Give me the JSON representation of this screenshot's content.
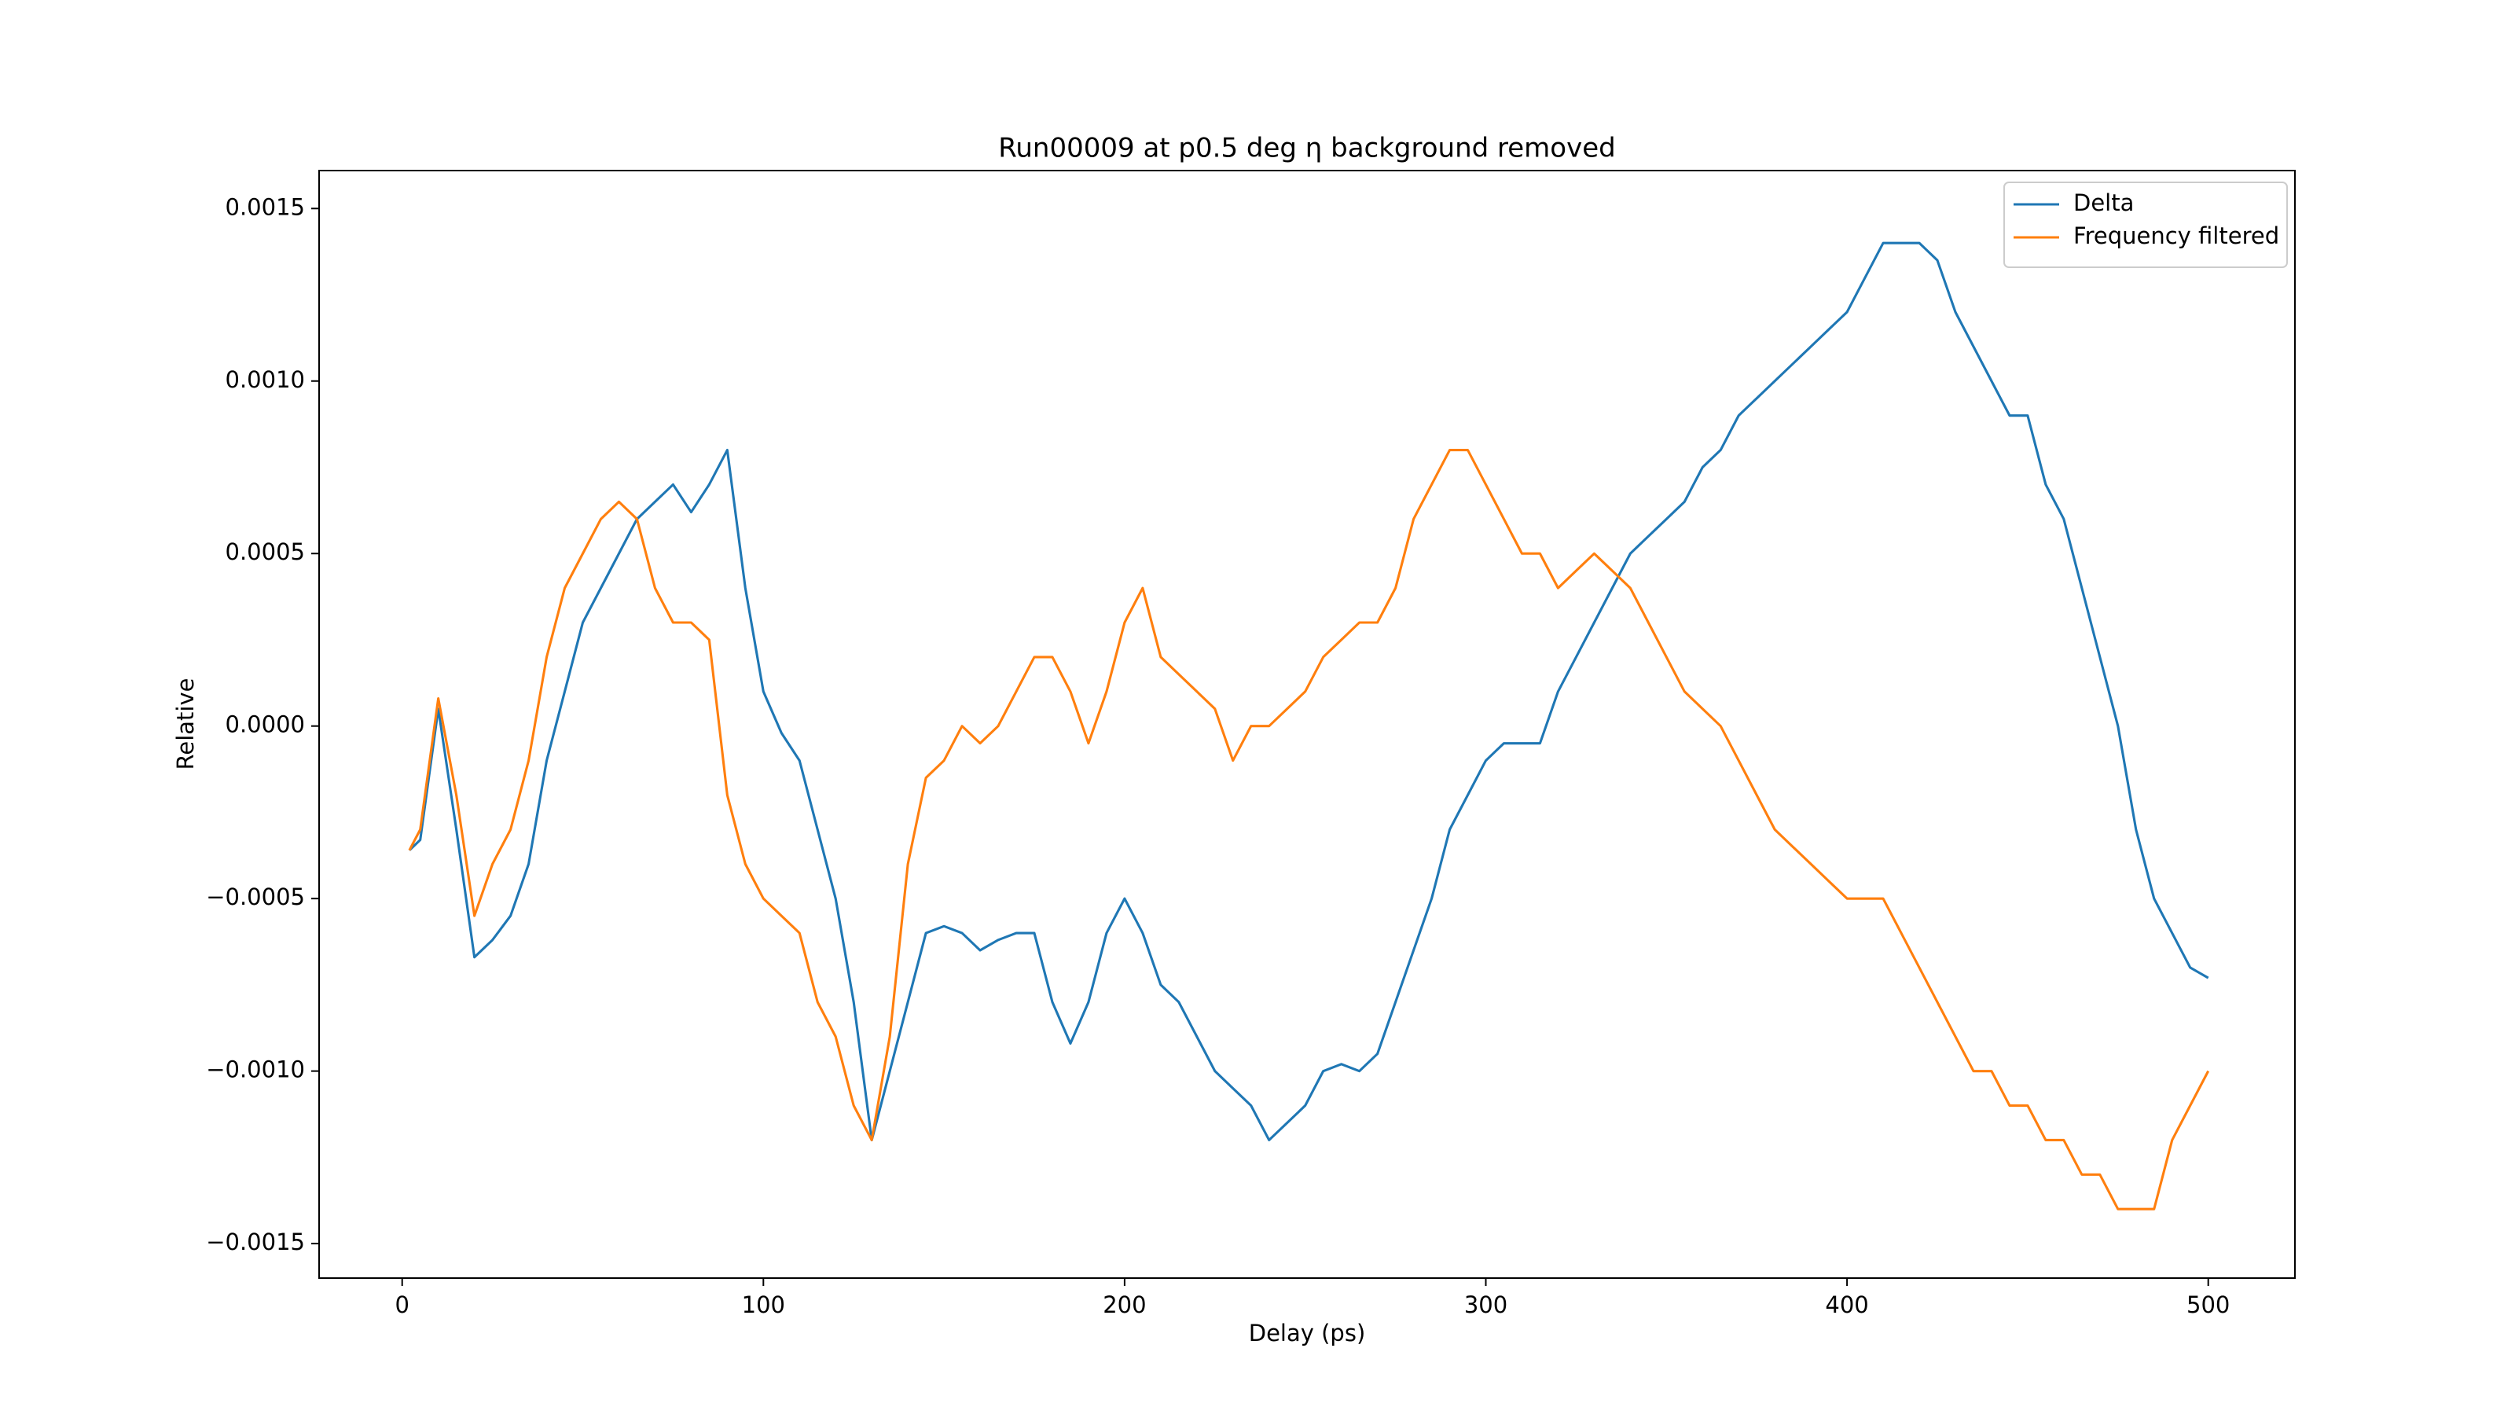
{
  "chart_data": {
    "type": "line",
    "title": "Run00009 at p0.5 deg η background removed",
    "x_label": "Delay (ps)",
    "y_label": "Relative",
    "x": [
      2,
      5,
      10,
      15,
      20,
      25,
      30,
      35,
      40,
      45,
      50,
      55,
      60,
      65,
      70,
      75,
      80,
      85,
      90,
      95,
      100,
      105,
      110,
      115,
      120,
      125,
      130,
      135,
      140,
      145,
      150,
      155,
      160,
      165,
      170,
      175,
      180,
      185,
      190,
      195,
      200,
      205,
      210,
      215,
      220,
      225,
      230,
      235,
      240,
      245,
      250,
      255,
      260,
      265,
      270,
      275,
      280,
      285,
      290,
      295,
      300,
      305,
      310,
      315,
      320,
      325,
      330,
      335,
      340,
      345,
      350,
      355,
      360,
      365,
      370,
      375,
      380,
      385,
      390,
      395,
      400,
      405,
      410,
      415,
      420,
      425,
      430,
      435,
      440,
      445,
      450,
      455,
      460,
      465,
      470,
      475,
      480,
      485,
      490,
      495,
      500
    ],
    "series": [
      {
        "name": "Delta",
        "color": "#1f77b4",
        "values": [
          -0.00036,
          -0.00033,
          5e-05,
          -0.0003,
          -0.00067,
          -0.00062,
          -0.00055,
          -0.0004,
          -0.0001,
          0.0001,
          0.0003,
          0.0004,
          0.0005,
          0.0006,
          0.00065,
          0.0007,
          0.00062,
          0.0007,
          0.0008,
          0.0004,
          0.0001,
          -2e-05,
          -0.0001,
          -0.0003,
          -0.0005,
          -0.0008,
          -0.0012,
          -0.001,
          -0.0008,
          -0.0006,
          -0.00058,
          -0.0006,
          -0.00065,
          -0.00062,
          -0.0006,
          -0.0006,
          -0.0008,
          -0.00092,
          -0.0008,
          -0.0006,
          -0.0005,
          -0.0006,
          -0.00075,
          -0.0008,
          -0.0009,
          -0.001,
          -0.00105,
          -0.0011,
          -0.0012,
          -0.00115,
          -0.0011,
          -0.001,
          -0.00098,
          -0.001,
          -0.00095,
          -0.0008,
          -0.00065,
          -0.0005,
          -0.0003,
          -0.0002,
          -0.0001,
          -5e-05,
          -5e-05,
          -5e-05,
          0.0001,
          0.0002,
          0.0003,
          0.0004,
          0.0005,
          0.00055,
          0.0006,
          0.00065,
          0.00075,
          0.0008,
          0.0009,
          0.00095,
          0.001,
          0.00105,
          0.0011,
          0.00115,
          0.0012,
          0.0013,
          0.0014,
          0.0014,
          0.0014,
          0.00135,
          0.0012,
          0.0011,
          0.001,
          0.0009,
          0.0009,
          0.0007,
          0.0006,
          0.0004,
          0.0002,
          0.0,
          -0.0003,
          -0.0005,
          -0.0006,
          -0.0007,
          -0.00073
        ]
      },
      {
        "name": "Frequency filtered",
        "color": "#ff7f0e",
        "values": [
          -0.00036,
          -0.0003,
          8e-05,
          -0.0002,
          -0.00055,
          -0.0004,
          -0.0003,
          -0.0001,
          0.0002,
          0.0004,
          0.0005,
          0.0006,
          0.00065,
          0.0006,
          0.0004,
          0.0003,
          0.0003,
          0.00025,
          -0.0002,
          -0.0004,
          -0.0005,
          -0.00055,
          -0.0006,
          -0.0008,
          -0.0009,
          -0.0011,
          -0.0012,
          -0.0009,
          -0.0004,
          -0.00015,
          -0.0001,
          0.0,
          -5e-05,
          0.0,
          0.0001,
          0.0002,
          0.0002,
          0.0001,
          -5e-05,
          0.0001,
          0.0003,
          0.0004,
          0.0002,
          0.00015,
          0.0001,
          5e-05,
          -0.0001,
          0.0,
          0.0,
          5e-05,
          0.0001,
          0.0002,
          0.00025,
          0.0003,
          0.0003,
          0.0004,
          0.0006,
          0.0007,
          0.0008,
          0.0008,
          0.0007,
          0.0006,
          0.0005,
          0.0005,
          0.0004,
          0.00045,
          0.0005,
          0.00045,
          0.0004,
          0.0003,
          0.0002,
          0.0001,
          5e-05,
          0.0,
          -0.0001,
          -0.0002,
          -0.0003,
          -0.00035,
          -0.0004,
          -0.00045,
          -0.0005,
          -0.0005,
          -0.0005,
          -0.0006,
          -0.0007,
          -0.0008,
          -0.0009,
          -0.001,
          -0.001,
          -0.0011,
          -0.0011,
          -0.0012,
          -0.0012,
          -0.0013,
          -0.0013,
          -0.0014,
          -0.0014,
          -0.0014,
          -0.0012,
          -0.0011,
          -0.001
        ]
      }
    ],
    "xlim": [
      -23,
      524
    ],
    "ylim": [
      -0.0016,
      0.00161
    ],
    "xticks": [
      0,
      100,
      200,
      300,
      400,
      500
    ],
    "yticks": [
      {
        "value": -0.0015,
        "label": "−0.0015"
      },
      {
        "value": -0.001,
        "label": "−0.0010"
      },
      {
        "value": -0.0005,
        "label": "−0.0005"
      },
      {
        "value": 0,
        "label": "0.0000"
      },
      {
        "value": 0.0005,
        "label": "0.0005"
      },
      {
        "value": 0.001,
        "label": "0.0010"
      },
      {
        "value": 0.0015,
        "label": "0.0015"
      }
    ],
    "grid": false,
    "legend": "upper right"
  }
}
